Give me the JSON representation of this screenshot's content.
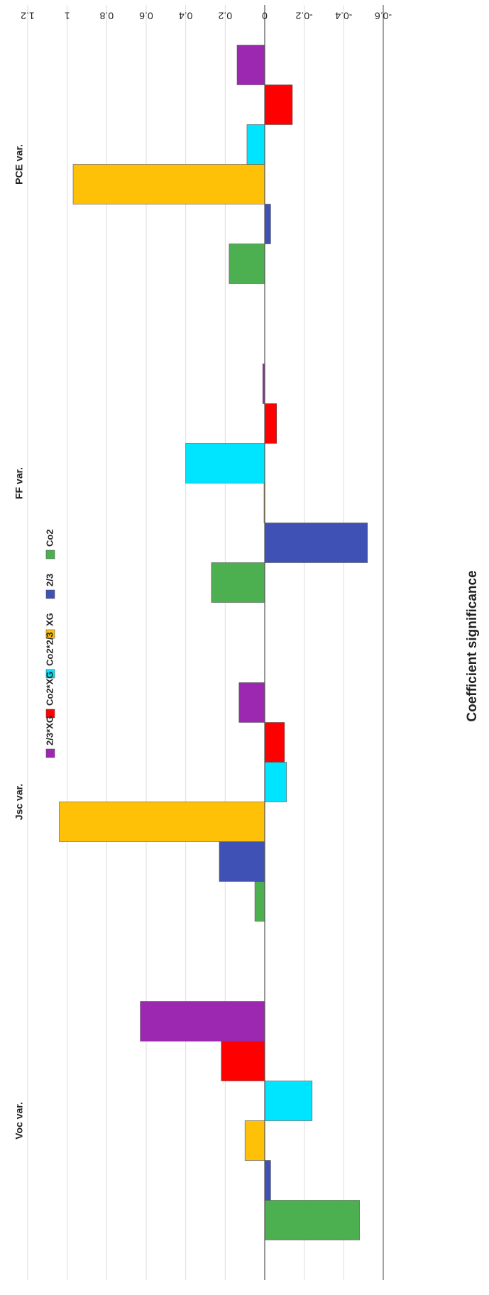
{
  "chart_data": {
    "type": "bar",
    "orientation": "horizontal-rotated-180",
    "categories": [
      "Voc var.",
      "Jsc var.",
      "FF var.",
      "PCE var."
    ],
    "series": [
      {
        "name": "Co2",
        "color": "#4caf50",
        "values": [
          -0.48,
          0.05,
          0.27,
          0.18
        ]
      },
      {
        "name": "2/3",
        "color": "#3f51b5",
        "values": [
          -0.03,
          0.23,
          -0.52,
          -0.03
        ]
      },
      {
        "name": "XG",
        "color": "#ffc107",
        "values": [
          0.1,
          1.04,
          0.0,
          0.97
        ]
      },
      {
        "name": "Co2*2/3",
        "color": "#00e5ff",
        "values": [
          -0.24,
          -0.11,
          0.4,
          0.09
        ]
      },
      {
        "name": "Co2*XG",
        "color": "#ff0000",
        "values": [
          0.22,
          -0.1,
          -0.06,
          -0.14
        ]
      },
      {
        "name": "2/3*XG",
        "color": "#9c27b0",
        "values": [
          0.63,
          0.13,
          0.01,
          0.14
        ]
      }
    ],
    "ylabel": "Coefficient significance",
    "ylim": [
      -0.6,
      1.2
    ],
    "ticks": [
      1.2,
      1.0,
      0.8,
      0.6,
      0.4,
      0.2,
      0.0,
      -0.2,
      -0.4,
      -0.6
    ],
    "tick_labels": [
      "1.2",
      "1",
      "0.8",
      "0.6",
      "0.4",
      "0.2",
      "0",
      "-0.2",
      "-0.4",
      "-0.6"
    ],
    "grid": true,
    "legend_position": "top"
  }
}
